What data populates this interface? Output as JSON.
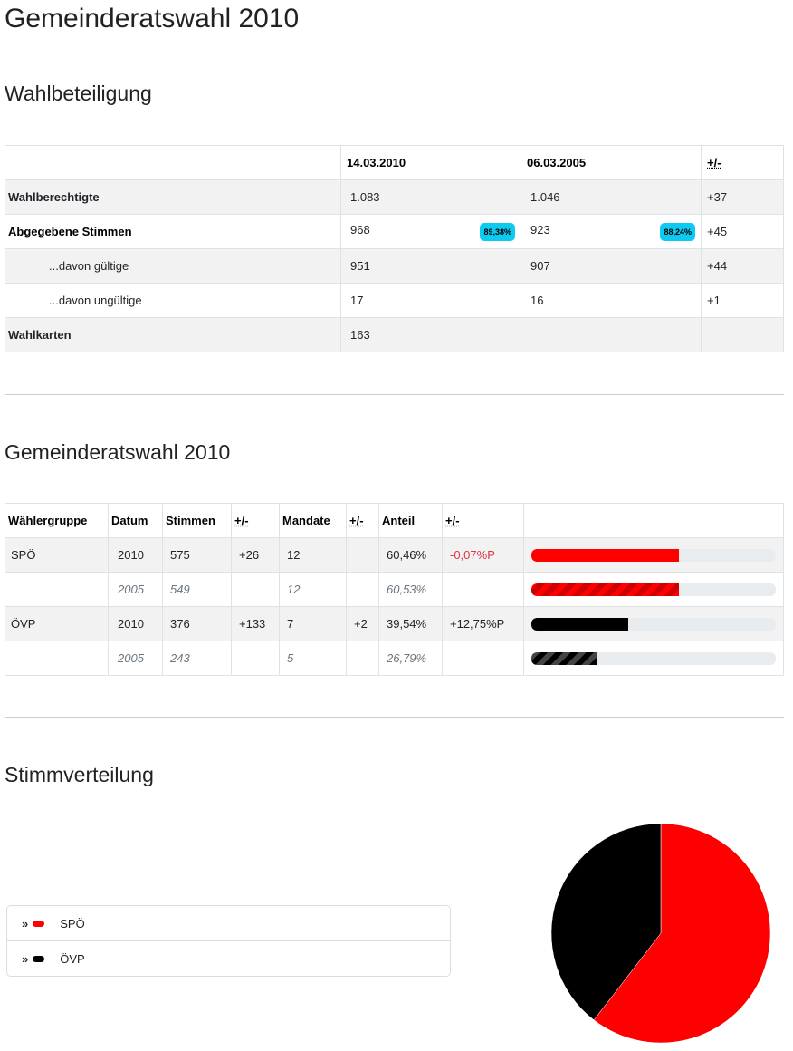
{
  "title": "Gemeinderatswahl 2010",
  "turnout": {
    "heading": "Wahlbeteiligung",
    "headers": [
      "",
      "14.03.2010",
      "06.03.2005",
      "+/-"
    ],
    "rows": [
      {
        "label": "Wahlberechtigte",
        "v2010": "1.083",
        "v2005": "1.046",
        "diff": "+37"
      },
      {
        "label": "Abgegebene Stimmen",
        "v2010": "968",
        "b2010": "89,38%",
        "v2005": "923",
        "b2005": "88,24%",
        "diff": "+45"
      },
      {
        "label": "...davon gültige",
        "v2010": "951",
        "v2005": "907",
        "diff": "+44"
      },
      {
        "label": "...davon ungültige",
        "v2010": "17",
        "v2005": "16",
        "diff": "+1"
      },
      {
        "label": "Wahlkarten",
        "v2010": "163",
        "v2005": "",
        "diff": ""
      }
    ]
  },
  "results": {
    "heading": "Gemeinderatswahl 2010",
    "headers": [
      "Wählergruppe",
      "Datum",
      "Stimmen",
      "+/-",
      "Mandate",
      "+/-",
      "Anteil",
      "+/-"
    ],
    "rows": [
      {
        "party": "SPÖ",
        "year": "2010",
        "votes": "575",
        "vdiff": "+26",
        "seats": "12",
        "sdiff": "",
        "share": "60,46%",
        "shdiff": "-0,07%P",
        "pct": 60.46
      },
      {
        "party": "",
        "year": "2005",
        "votes": "549",
        "vdiff": "",
        "seats": "12",
        "sdiff": "",
        "share": "60,53%",
        "shdiff": "",
        "pct": 60.53
      },
      {
        "party": "ÖVP",
        "year": "2010",
        "votes": "376",
        "vdiff": "+133",
        "seats": "7",
        "sdiff": "+2",
        "share": "39,54%",
        "shdiff": "+12,75%P",
        "pct": 39.54
      },
      {
        "party": "",
        "year": "2005",
        "votes": "243",
        "vdiff": "",
        "seats": "5",
        "sdiff": "",
        "share": "26,79%",
        "shdiff": "",
        "pct": 26.79
      }
    ]
  },
  "distribution": {
    "heading": "Stimmverteilung",
    "legend": [
      {
        "label": "SPÖ",
        "color": "#ff0000"
      },
      {
        "label": "ÖVP",
        "color": "#000000"
      }
    ]
  },
  "chart_data": {
    "type": "pie",
    "categories": [
      "SPÖ",
      "ÖVP"
    ],
    "values": [
      60.46,
      39.54
    ],
    "colors": [
      "#ff0000",
      "#000000"
    ]
  }
}
